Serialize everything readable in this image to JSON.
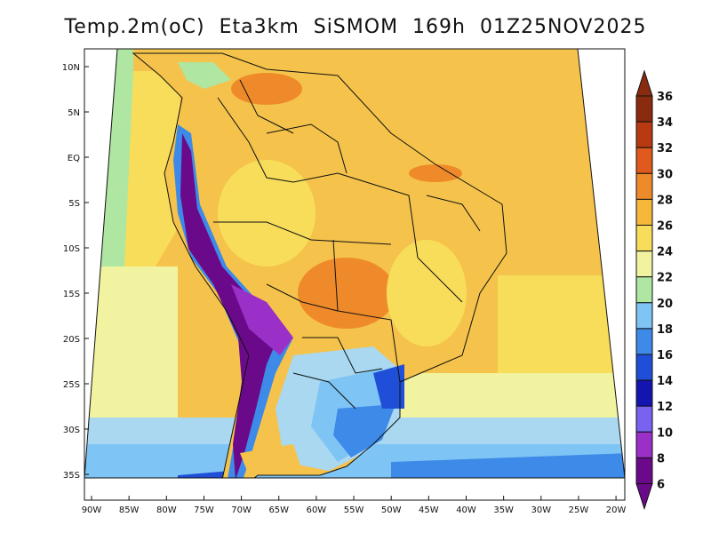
{
  "title": "Temp.2m(oC)  Eta3km  SiSMOM  169h  01Z25NOV2025",
  "lat_labels": [
    "10N",
    "5N",
    "EQ",
    "5S",
    "10S",
    "15S",
    "20S",
    "25S",
    "30S",
    "35S"
  ],
  "lon_labels": [
    "90W",
    "85W",
    "80W",
    "75W",
    "70W",
    "65W",
    "60W",
    "55W",
    "50W",
    "45W",
    "40W",
    "35W",
    "30W",
    "25W",
    "20W"
  ],
  "colorbar": {
    "labels": [
      "6",
      "8",
      "10",
      "12",
      "14",
      "16",
      "18",
      "20",
      "22",
      "24",
      "26",
      "28",
      "30",
      "32",
      "34",
      "36"
    ],
    "colors": [
      "#6a0a8a",
      "#9b30c8",
      "#7a62f0",
      "#1414b0",
      "#1f4fd8",
      "#3d8ae8",
      "#7ec4f4",
      "#aee6a2",
      "#f2f3a0",
      "#f8dd5a",
      "#f5b83a",
      "#ef8a2a",
      "#df5a1c",
      "#b83a12",
      "#8a2a0e"
    ]
  },
  "colors": {
    "ocean_base": "#f5c34b",
    "south_ocean": "#a9d8f0",
    "cold_band": "#3d8ae8",
    "andes_cold": "#6a0a8a",
    "land_warm": "#f5c34b",
    "hot_spot": "#ef8a2a"
  }
}
